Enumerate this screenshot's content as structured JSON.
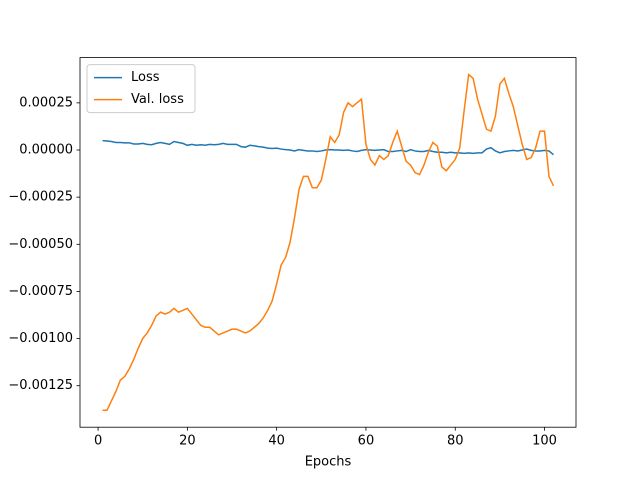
{
  "chart_data": {
    "type": "line",
    "xlabel": "Epochs",
    "x": [
      1,
      2,
      3,
      4,
      5,
      6,
      7,
      8,
      9,
      10,
      11,
      12,
      13,
      14,
      15,
      16,
      17,
      18,
      19,
      20,
      21,
      22,
      23,
      24,
      25,
      26,
      27,
      28,
      29,
      30,
      31,
      32,
      33,
      34,
      35,
      36,
      37,
      38,
      39,
      40,
      41,
      42,
      43,
      44,
      45,
      46,
      47,
      48,
      49,
      50,
      51,
      52,
      53,
      54,
      55,
      56,
      57,
      58,
      59,
      60,
      61,
      62,
      63,
      64,
      65,
      66,
      67,
      68,
      69,
      70,
      71,
      72,
      73,
      74,
      75,
      76,
      77,
      78,
      79,
      80,
      81,
      82,
      83,
      84,
      85,
      86,
      87,
      88,
      89,
      90,
      91,
      92,
      93,
      94,
      95,
      96,
      97,
      98,
      99,
      100,
      101,
      102
    ],
    "series": [
      {
        "name": "Loss",
        "color": "#1f77b4",
        "values": [
          5e-05,
          4.8e-05,
          4.5e-05,
          4e-05,
          4e-05,
          3.8e-05,
          3.8e-05,
          3.2e-05,
          3.2e-05,
          3.5e-05,
          3e-05,
          2.8e-05,
          3.5e-05,
          4e-05,
          3.5e-05,
          3e-05,
          4.5e-05,
          4e-05,
          3.5e-05,
          2.5e-05,
          3e-05,
          2.5e-05,
          2.8e-05,
          2.5e-05,
          3e-05,
          2.8e-05,
          3e-05,
          3.5e-05,
          3e-05,
          3e-05,
          3e-05,
          1.8e-05,
          1.5e-05,
          2.5e-05,
          2.2e-05,
          1.8e-05,
          1.5e-05,
          1e-05,
          8e-06,
          1e-05,
          5e-06,
          2e-06,
          0,
          -5e-06,
          2e-06,
          -2e-06,
          -5e-06,
          -5e-06,
          -8e-06,
          -5e-06,
          0,
          2e-06,
          0,
          0,
          -2e-06,
          0,
          -5e-06,
          -8e-06,
          -2e-06,
          2e-06,
          0,
          -2e-06,
          0,
          2e-06,
          -8e-06,
          -8e-06,
          -5e-06,
          -2e-06,
          -8e-06,
          2e-06,
          -5e-06,
          -8e-06,
          -8e-06,
          -2e-06,
          -8e-06,
          -1.2e-05,
          -1.2e-05,
          -1.5e-05,
          -1.2e-05,
          -1.5e-05,
          -1.5e-05,
          -1.8e-05,
          -1.5e-05,
          -1.8e-05,
          -1.5e-05,
          -1.5e-05,
          5e-06,
          1.2e-05,
          -5e-06,
          -1.5e-05,
          -8e-06,
          -5e-06,
          -2e-06,
          -5e-06,
          0,
          5e-06,
          -2e-06,
          -5e-06,
          -5e-06,
          -2e-06,
          -5e-06,
          -2.5e-05
        ]
      },
      {
        "name": "Val. loss",
        "color": "#ff7f0e",
        "values": [
          -0.00138,
          -0.00138,
          -0.00133,
          -0.00128,
          -0.00122,
          -0.0012,
          -0.00116,
          -0.00111,
          -0.00105,
          -0.001,
          -0.00097,
          -0.00093,
          -0.00088,
          -0.00086,
          -0.00087,
          -0.00086,
          -0.00084,
          -0.00086,
          -0.00085,
          -0.00084,
          -0.00087,
          -0.0009,
          -0.00093,
          -0.00094,
          -0.00094,
          -0.00096,
          -0.00098,
          -0.00097,
          -0.00096,
          -0.00095,
          -0.00095,
          -0.00096,
          -0.00097,
          -0.00096,
          -0.00094,
          -0.00092,
          -0.00089,
          -0.00085,
          -0.0008,
          -0.00071,
          -0.00061,
          -0.00057,
          -0.00049,
          -0.00036,
          -0.00021,
          -0.00014,
          -0.00014,
          -0.0002,
          -0.0002,
          -0.00016,
          -5e-05,
          7e-05,
          4e-05,
          8e-05,
          0.0002,
          0.00025,
          0.00023,
          0.00025,
          0.00027,
          3e-05,
          -5e-05,
          -8e-05,
          -3e-05,
          -5e-05,
          -3e-05,
          4e-05,
          0.0001,
          2e-05,
          -6e-05,
          -8e-05,
          -0.00012,
          -0.00013,
          -8e-05,
          -1e-05,
          4e-05,
          2e-05,
          -9e-05,
          -0.00011,
          -8e-05,
          -5e-05,
          1e-05,
          0.00021,
          0.0004,
          0.00038,
          0.00027,
          0.00019,
          0.00011,
          0.0001,
          0.00018,
          0.00035,
          0.00038,
          0.0003,
          0.00023,
          0.00013,
          3e-05,
          -5e-05,
          -4e-05,
          1e-05,
          0.0001,
          0.0001,
          -0.00014,
          -0.00019
        ]
      }
    ],
    "xlim": [
      -4.05,
      107.05
    ],
    "xticks": [
      0,
      20,
      40,
      60,
      80,
      100
    ],
    "ylim": [
      -0.00147,
      0.00049
    ],
    "yticks": [
      {
        "value": -0.00125,
        "label": "−0.00125"
      },
      {
        "value": -0.001,
        "label": "−0.00100"
      },
      {
        "value": -0.00075,
        "label": "−0.00075"
      },
      {
        "value": -0.0005,
        "label": "−0.00050"
      },
      {
        "value": -0.00025,
        "label": "−0.00025"
      },
      {
        "value": 0,
        "label": "0.00000"
      },
      0.00025
    ],
    "legend": "upper left",
    "grid": false
  }
}
